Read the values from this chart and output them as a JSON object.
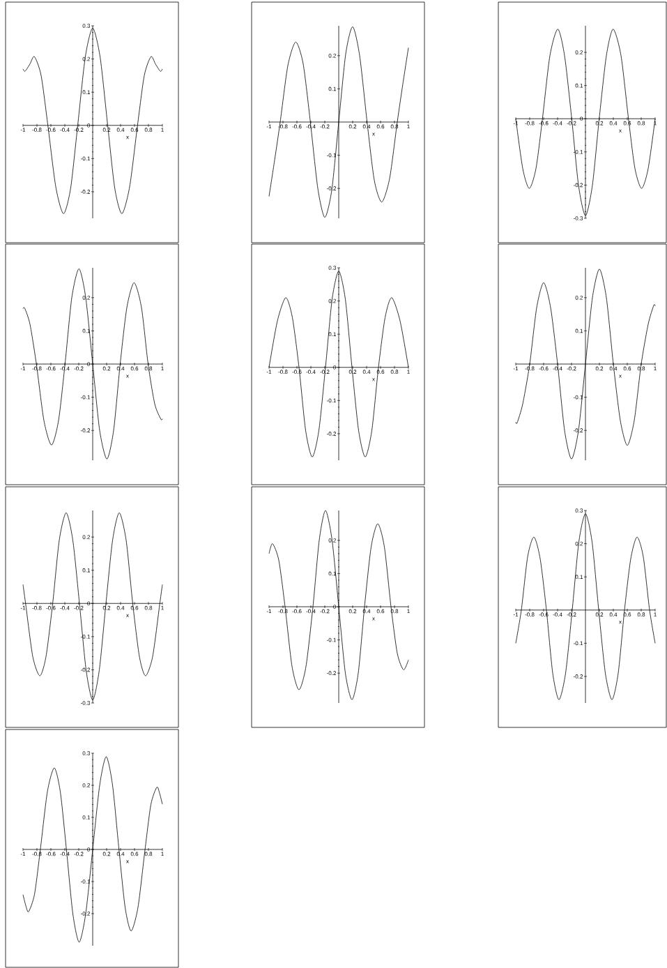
{
  "chart_data": [
    {
      "type": "line",
      "xlabel": "x",
      "color": "#000000",
      "xlim": [
        -1,
        1
      ],
      "ylim": [
        -0.28,
        0.3
      ],
      "xticks": [
        -1,
        -0.8,
        -0.6,
        -0.4,
        -0.2,
        0.2,
        0.4,
        0.6,
        0.8,
        1
      ],
      "yticks": [
        -0.2,
        -0.1,
        0,
        0.1,
        0.2,
        0.3
      ],
      "x": [
        -1,
        -0.97,
        -0.9,
        -0.836,
        -0.74,
        -0.643,
        -0.53,
        -0.419,
        -0.317,
        -0.215,
        -0.107,
        0,
        0.107,
        0.215,
        0.317,
        0.419,
        0.53,
        0.643,
        0.74,
        0.836,
        0.9,
        0.97,
        1
      ],
      "values": [
        0.17,
        0.163,
        0.185,
        0.207,
        0.15,
        0,
        -0.185,
        -0.266,
        -0.19,
        0,
        0.205,
        0.293,
        0.205,
        0,
        -0.19,
        -0.266,
        -0.185,
        0,
        0.15,
        0.207,
        0.185,
        0.163,
        0.17
      ]
    },
    {
      "type": "line",
      "xlabel": "x",
      "color": "#000000",
      "xlim": [
        -1,
        1
      ],
      "ylim": [
        -0.29,
        0.29
      ],
      "xticks": [
        -1,
        -0.8,
        -0.6,
        -0.4,
        -0.2,
        0.2,
        0.4,
        0.6,
        0.8,
        1
      ],
      "yticks": [
        -0.2,
        -0.1,
        0.1,
        0.2
      ],
      "x": [
        -1,
        -0.92,
        -0.84,
        -0.73,
        -0.617,
        -0.51,
        -0.407,
        -0.3,
        -0.2,
        -0.1,
        0,
        0.1,
        0.2,
        0.3,
        0.407,
        0.51,
        0.617,
        0.73,
        0.84,
        0.92,
        1
      ],
      "values": [
        -0.224,
        -0.115,
        0,
        0.17,
        0.241,
        0.175,
        0,
        -0.2,
        -0.287,
        -0.205,
        0,
        0.205,
        0.287,
        0.2,
        0,
        -0.175,
        -0.241,
        -0.17,
        0,
        0.115,
        0.224
      ]
    },
    {
      "type": "line",
      "xlabel": "x",
      "color": "#000000",
      "xlim": [
        -1,
        1
      ],
      "ylim": [
        -0.3,
        0.28
      ],
      "xticks": [
        -1,
        -0.8,
        -0.6,
        -0.4,
        -0.2,
        0.2,
        0.4,
        0.6,
        0.8,
        1
      ],
      "yticks": [
        -0.3,
        -0.2,
        -0.1,
        0,
        0.1,
        0.2
      ],
      "x": [
        -1,
        -0.9,
        -0.806,
        -0.71,
        -0.617,
        -0.51,
        -0.397,
        -0.3,
        -0.197,
        -0.1,
        0,
        0.1,
        0.197,
        0.3,
        0.397,
        0.51,
        0.617,
        0.71,
        0.806,
        0.9,
        1
      ],
      "values": [
        0,
        -0.15,
        -0.21,
        -0.15,
        0,
        0.19,
        0.27,
        0.19,
        0,
        -0.2,
        -0.292,
        -0.2,
        0,
        0.19,
        0.27,
        0.19,
        0,
        -0.15,
        -0.21,
        -0.15,
        0
      ]
    },
    {
      "type": "line",
      "xlabel": "x",
      "color": "#000000",
      "xlim": [
        -1,
        1
      ],
      "ylim": [
        -0.29,
        0.29
      ],
      "xticks": [
        -1,
        -0.8,
        -0.6,
        -0.4,
        -0.2,
        0.2,
        0.4,
        0.6,
        0.8,
        1
      ],
      "yticks": [
        -0.2,
        -0.1,
        0,
        0.1,
        0.2
      ],
      "x": [
        -1,
        -0.975,
        -0.9,
        -0.808,
        -0.7,
        -0.591,
        -0.49,
        -0.397,
        -0.3,
        -0.197,
        -0.1,
        0,
        0.1,
        0.204,
        0.3,
        0.394,
        0.49,
        0.594,
        0.7,
        0.795,
        0.89,
        0.978,
        1
      ],
      "values": [
        0.167,
        0.168,
        0.12,
        0,
        -0.17,
        -0.244,
        -0.17,
        0,
        0.2,
        0.287,
        0.2,
        0,
        -0.2,
        -0.286,
        -0.2,
        0,
        0.17,
        0.245,
        0.17,
        0,
        -0.12,
        -0.166,
        -0.165
      ]
    },
    {
      "type": "line",
      "xlabel": "x",
      "color": "#000000",
      "xlim": [
        -1,
        1
      ],
      "ylim": [
        -0.28,
        0.3
      ],
      "xticks": [
        -1,
        -0.8,
        -0.6,
        -0.4,
        -0.2,
        0.2,
        0.4,
        0.6,
        0.8,
        1
      ],
      "yticks": [
        -0.2,
        -0.1,
        0,
        0.1,
        0.2,
        0.3
      ],
      "x": [
        -1,
        -0.88,
        -0.76,
        -0.665,
        -0.57,
        -0.475,
        -0.38,
        -0.285,
        -0.19,
        -0.095,
        0,
        0.095,
        0.19,
        0.285,
        0.38,
        0.475,
        0.57,
        0.665,
        0.76,
        0.88,
        1
      ],
      "values": [
        0,
        0.14,
        0.21,
        0.15,
        0,
        -0.19,
        -0.27,
        -0.19,
        0,
        0.205,
        0.29,
        0.205,
        0,
        -0.19,
        -0.27,
        -0.19,
        0,
        0.15,
        0.21,
        0.14,
        0
      ]
    },
    {
      "type": "line",
      "xlabel": "x",
      "color": "#000000",
      "xlim": [
        -1,
        1
      ],
      "ylim": [
        -0.29,
        0.29
      ],
      "xticks": [
        -1,
        -0.8,
        -0.6,
        -0.4,
        -0.2,
        0.2,
        0.4,
        0.6,
        0.8,
        1
      ],
      "yticks": [
        -0.2,
        -0.1,
        0.1,
        0.2
      ],
      "x": [
        -1,
        -0.98,
        -0.9,
        -0.8,
        -0.7,
        -0.6,
        -0.5,
        -0.4,
        -0.3,
        -0.2,
        -0.1,
        0,
        0.1,
        0.2,
        0.3,
        0.4,
        0.5,
        0.6,
        0.7,
        0.8,
        0.9,
        0.98,
        1
      ],
      "values": [
        -0.175,
        -0.177,
        -0.12,
        0,
        0.17,
        0.245,
        0.17,
        0,
        -0.2,
        -0.286,
        -0.2,
        0,
        0.2,
        0.286,
        0.2,
        0,
        -0.17,
        -0.245,
        -0.17,
        0,
        0.12,
        0.177,
        0.175
      ]
    },
    {
      "type": "line",
      "xlabel": "x",
      "color": "#000000",
      "xlim": [
        -1,
        1
      ],
      "ylim": [
        -0.3,
        0.28
      ],
      "xticks": [
        -1,
        -0.8,
        -0.6,
        -0.4,
        -0.2,
        0.2,
        0.4,
        0.6,
        0.8,
        1
      ],
      "yticks": [
        -0.3,
        -0.2,
        -0.1,
        0,
        0.1,
        0.2
      ],
      "x": [
        -1,
        -0.963,
        -0.86,
        -0.758,
        -0.67,
        -0.574,
        -0.48,
        -0.381,
        -0.285,
        -0.19,
        -0.095,
        0,
        0.095,
        0.19,
        0.285,
        0.381,
        0.48,
        0.574,
        0.67,
        0.758,
        0.86,
        0.963,
        1
      ],
      "values": [
        0.057,
        0,
        -0.16,
        -0.218,
        -0.16,
        0,
        0.19,
        0.273,
        0.19,
        0,
        -0.2,
        -0.291,
        -0.2,
        0,
        0.19,
        0.273,
        0.19,
        0,
        -0.16,
        -0.218,
        -0.16,
        0,
        0.057
      ]
    },
    {
      "type": "line",
      "xlabel": "x",
      "color": "#000000",
      "xlim": [
        -1,
        1
      ],
      "ylim": [
        -0.29,
        0.29
      ],
      "xticks": [
        -1,
        -0.8,
        -0.6,
        -0.4,
        -0.2,
        0.2,
        0.4,
        0.6,
        0.8,
        1
      ],
      "yticks": [
        -0.2,
        -0.1,
        0,
        0.1,
        0.2
      ],
      "x": [
        -1,
        -0.95,
        -0.86,
        -0.77,
        -0.67,
        -0.57,
        -0.47,
        -0.37,
        -0.28,
        -0.19,
        -0.095,
        0,
        0.095,
        0.19,
        0.28,
        0.37,
        0.465,
        0.56,
        0.655,
        0.75,
        0.84,
        0.93,
        1
      ],
      "values": [
        0.16,
        0.19,
        0.14,
        0,
        -0.18,
        -0.25,
        -0.18,
        0,
        0.2,
        0.29,
        0.2,
        0,
        -0.2,
        -0.28,
        -0.2,
        0,
        0.18,
        0.25,
        0.18,
        0,
        -0.14,
        -0.19,
        -0.16
      ]
    },
    {
      "type": "line",
      "xlabel": "x",
      "color": "#000000",
      "xlim": [
        -1,
        1
      ],
      "ylim": [
        -0.28,
        0.3
      ],
      "xticks": [
        -1,
        -0.8,
        -0.6,
        -0.4,
        -0.2,
        0.2,
        0.4,
        0.6,
        0.8,
        1
      ],
      "yticks": [
        -0.2,
        -0.1,
        0.1,
        0.2,
        0.3
      ],
      "x": [
        -1,
        -0.92,
        -0.83,
        -0.74,
        -0.65,
        -0.56,
        -0.47,
        -0.38,
        -0.285,
        -0.19,
        -0.095,
        0,
        0.095,
        0.19,
        0.285,
        0.38,
        0.47,
        0.56,
        0.65,
        0.74,
        0.83,
        0.92,
        1
      ],
      "values": [
        -0.1,
        0,
        0.16,
        0.22,
        0.155,
        0,
        -0.19,
        -0.27,
        -0.19,
        0,
        0.205,
        0.29,
        0.205,
        0,
        -0.19,
        -0.27,
        -0.19,
        0,
        0.155,
        0.22,
        0.16,
        0,
        -0.1
      ]
    },
    {
      "type": "line",
      "xlabel": "x",
      "color": "#000000",
      "xlim": [
        -1,
        1
      ],
      "ylim": [
        -0.3,
        0.3
      ],
      "xticks": [
        -1,
        -0.8,
        -0.6,
        -0.4,
        -0.2,
        0.2,
        0.4,
        0.6,
        0.8,
        1
      ],
      "yticks": [
        -0.2,
        -0.1,
        0,
        0.1,
        0.2,
        0.3
      ],
      "x": [
        -1,
        -0.96,
        -0.92,
        -0.835,
        -0.751,
        -0.65,
        -0.551,
        -0.465,
        -0.377,
        -0.285,
        -0.194,
        -0.1,
        0,
        0.1,
        0.194,
        0.285,
        0.377,
        0.465,
        0.551,
        0.65,
        0.751,
        0.835,
        0.92,
        0.96,
        1
      ],
      "values": [
        -0.141,
        -0.175,
        -0.194,
        -0.14,
        0,
        0.18,
        0.254,
        0.18,
        0,
        -0.2,
        -0.289,
        -0.2,
        0,
        0.2,
        0.289,
        0.2,
        0,
        -0.18,
        -0.254,
        -0.18,
        0,
        0.14,
        0.194,
        0.175,
        0.141
      ]
    }
  ]
}
